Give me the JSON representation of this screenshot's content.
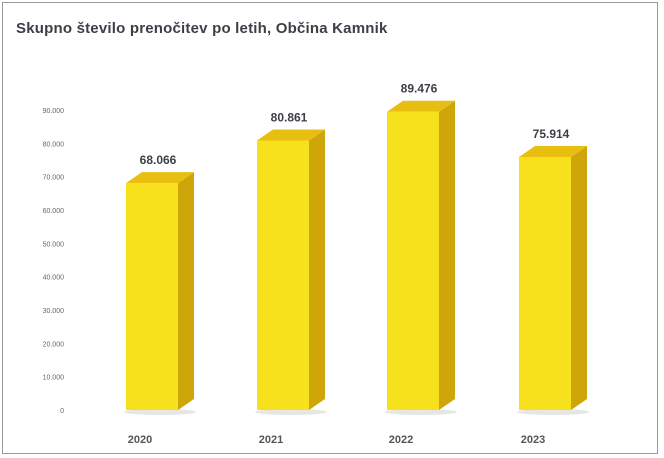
{
  "chart_data": {
    "type": "bar",
    "title": "Skupno število prenočitev po letih, Občina Kamnik",
    "categories": [
      "2020",
      "2021",
      "2022",
      "2023"
    ],
    "values": [
      68066,
      80861,
      89476,
      75914
    ],
    "data_labels": [
      "68.066",
      "80.861",
      "89.476",
      "75.914"
    ],
    "ylim": [
      0,
      90000
    ],
    "yticks": [
      0,
      10000,
      20000,
      30000,
      40000,
      50000,
      60000,
      70000,
      80000,
      90000
    ],
    "ytick_labels": [
      "0",
      "10.000",
      "20.000",
      "30.000",
      "40.000",
      "50.000",
      "60.000",
      "70.000",
      "80.000",
      "90.000"
    ],
    "grid": false,
    "legend": "none",
    "style": "3d-column",
    "colors": {
      "bar_front": "#f7e01c",
      "bar_side": "#cfa60a",
      "bar_top": "#e8bf10"
    }
  }
}
